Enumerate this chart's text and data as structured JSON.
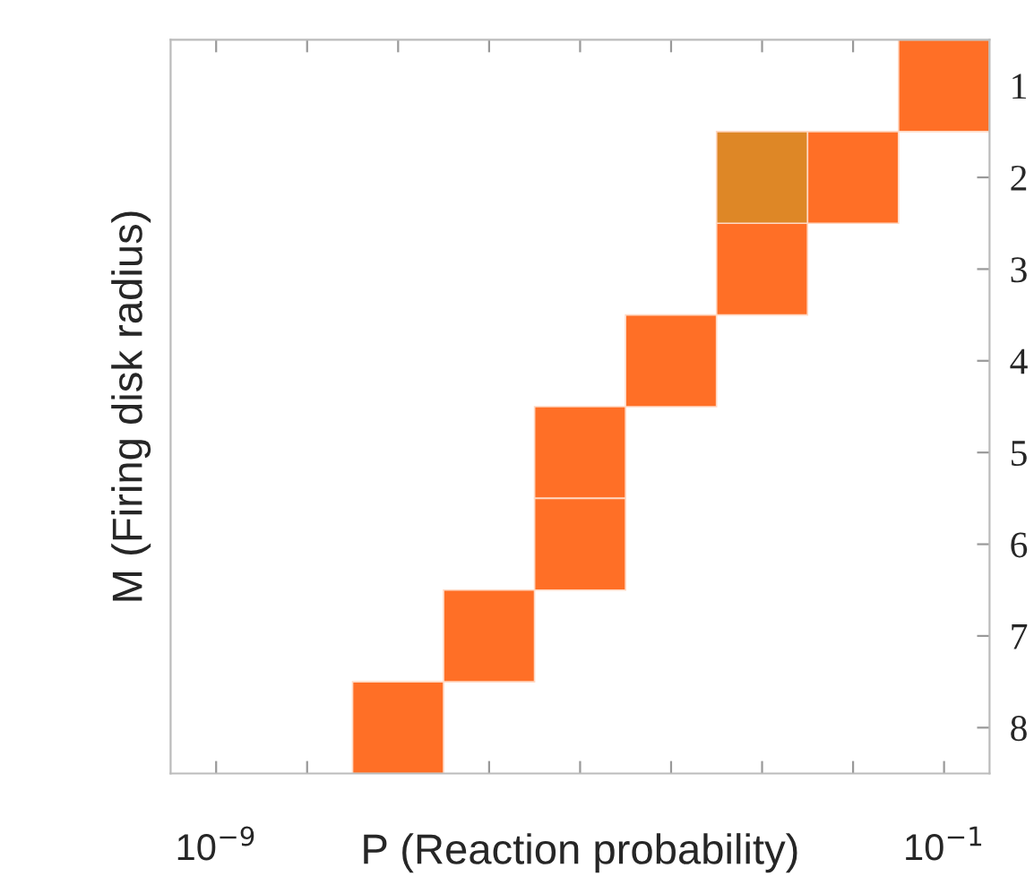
{
  "chart_data": {
    "type": "bar",
    "orientation": "horizontal",
    "xlabel": "P (Reaction probability)",
    "ylabel": "M (Firing disk radius)",
    "log": "x",
    "categories": [
      "1",
      "2",
      "3",
      "4",
      "5",
      "6",
      "7",
      "8"
    ],
    "xlim": [
      3.16e-10,
      0.316
    ],
    "xticks": [
      {
        "value": 1e-09,
        "label": "10$^{−9}$"
      },
      {
        "value": 1e-08,
        "label": null
      },
      {
        "value": 1e-07,
        "label": null
      },
      {
        "value": 1e-06,
        "label": null
      },
      {
        "value": 1e-05,
        "label": null
      },
      {
        "value": 0.0001,
        "label": null
      },
      {
        "value": 0.001,
        "label": null
      },
      {
        "value": 0.01,
        "label": null
      },
      {
        "value": 0.1,
        "label": "10$^{−1}$"
      }
    ],
    "series": [
      {
        "color": "#ff6f26",
        "base": [
          0.0316,
          0.00316,
          0.000316,
          3.16e-05,
          3.16e-06,
          3.16e-06,
          3.16e-07,
          3.16e-08
        ],
        "values": [
          0.284,
          0.0284,
          0.00284,
          0.000284,
          2.84e-05,
          2.84e-05,
          2.84e-06,
          2.84e-07
        ]
      },
      {
        "color": "#de8726",
        "base": [
          null,
          0.000316,
          null,
          null,
          null,
          null,
          null,
          null
        ],
        "values": [
          null,
          0.00284,
          null,
          null,
          null,
          null,
          null,
          null
        ]
      }
    ]
  }
}
